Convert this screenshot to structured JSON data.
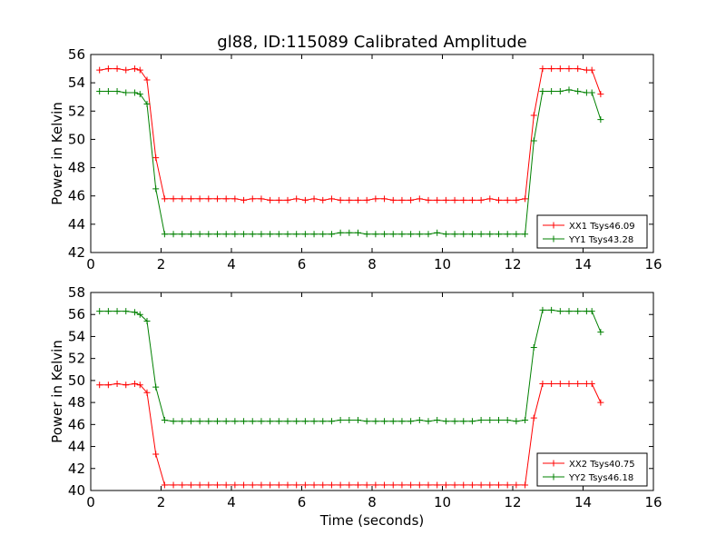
{
  "title": "gl88, ID:115089 Calibrated Amplitude",
  "colors": {
    "red": "#ff0000",
    "green": "#008000",
    "axis": "#000000",
    "background": "#ffffff"
  },
  "chart_data": [
    {
      "type": "line",
      "title": "gl88, ID:115089 Calibrated Amplitude",
      "xlabel": "",
      "ylabel": "Power in Kelvin",
      "xlim": [
        0,
        16
      ],
      "ylim": [
        42,
        56
      ],
      "xticks": [
        0,
        2,
        4,
        6,
        8,
        10,
        12,
        14,
        16
      ],
      "yticks": [
        42,
        44,
        46,
        48,
        50,
        52,
        54,
        56
      ],
      "grid": false,
      "legend": "lower-right",
      "x": [
        0.25,
        0.5,
        0.75,
        1.0,
        1.25,
        1.4,
        1.6,
        1.85,
        2.1,
        2.35,
        2.6,
        2.85,
        3.1,
        3.35,
        3.6,
        3.85,
        4.1,
        4.35,
        4.6,
        4.85,
        5.1,
        5.35,
        5.6,
        5.85,
        6.1,
        6.35,
        6.6,
        6.85,
        7.1,
        7.35,
        7.6,
        7.85,
        8.1,
        8.35,
        8.6,
        8.85,
        9.1,
        9.35,
        9.6,
        9.85,
        10.1,
        10.35,
        10.6,
        10.85,
        11.1,
        11.35,
        11.6,
        11.85,
        12.1,
        12.35,
        12.6,
        12.85,
        13.1,
        13.35,
        13.6,
        13.85,
        14.1,
        14.25,
        14.5
      ],
      "series": [
        {
          "name": "XX1 Tsys46.09",
          "color": "#ff0000",
          "values": [
            54.9,
            55.0,
            55.0,
            54.9,
            55.0,
            54.9,
            54.2,
            48.7,
            45.8,
            45.8,
            45.8,
            45.8,
            45.8,
            45.8,
            45.8,
            45.8,
            45.8,
            45.7,
            45.8,
            45.8,
            45.7,
            45.7,
            45.7,
            45.8,
            45.7,
            45.8,
            45.7,
            45.8,
            45.7,
            45.7,
            45.7,
            45.7,
            45.8,
            45.8,
            45.7,
            45.7,
            45.7,
            45.8,
            45.7,
            45.7,
            45.7,
            45.7,
            45.7,
            45.7,
            45.7,
            45.8,
            45.7,
            45.7,
            45.7,
            45.8,
            51.7,
            55.0,
            55.0,
            55.0,
            55.0,
            55.0,
            54.9,
            54.9,
            53.2
          ]
        },
        {
          "name": "YY1 Tsys43.28",
          "color": "#008000",
          "values": [
            53.4,
            53.4,
            53.4,
            53.3,
            53.3,
            53.2,
            52.5,
            46.5,
            43.3,
            43.3,
            43.3,
            43.3,
            43.3,
            43.3,
            43.3,
            43.3,
            43.3,
            43.3,
            43.3,
            43.3,
            43.3,
            43.3,
            43.3,
            43.3,
            43.3,
            43.3,
            43.3,
            43.3,
            43.4,
            43.4,
            43.4,
            43.3,
            43.3,
            43.3,
            43.3,
            43.3,
            43.3,
            43.3,
            43.3,
            43.4,
            43.3,
            43.3,
            43.3,
            43.3,
            43.3,
            43.3,
            43.3,
            43.3,
            43.3,
            43.3,
            49.9,
            53.4,
            53.4,
            53.4,
            53.5,
            53.4,
            53.3,
            53.3,
            51.4
          ]
        }
      ]
    },
    {
      "type": "line",
      "title": "",
      "xlabel": "Time (seconds)",
      "ylabel": "Power in Kelvin",
      "xlim": [
        0,
        16
      ],
      "ylim": [
        40,
        58
      ],
      "xticks": [
        0,
        2,
        4,
        6,
        8,
        10,
        12,
        14,
        16
      ],
      "yticks": [
        40,
        42,
        44,
        46,
        48,
        50,
        52,
        54,
        56,
        58
      ],
      "grid": false,
      "legend": "lower-right",
      "x": [
        0.25,
        0.5,
        0.75,
        1.0,
        1.25,
        1.4,
        1.6,
        1.85,
        2.1,
        2.35,
        2.6,
        2.85,
        3.1,
        3.35,
        3.6,
        3.85,
        4.1,
        4.35,
        4.6,
        4.85,
        5.1,
        5.35,
        5.6,
        5.85,
        6.1,
        6.35,
        6.6,
        6.85,
        7.1,
        7.35,
        7.6,
        7.85,
        8.1,
        8.35,
        8.6,
        8.85,
        9.1,
        9.35,
        9.6,
        9.85,
        10.1,
        10.35,
        10.6,
        10.85,
        11.1,
        11.35,
        11.6,
        11.85,
        12.1,
        12.35,
        12.6,
        12.85,
        13.1,
        13.35,
        13.6,
        13.85,
        14.1,
        14.25,
        14.5
      ],
      "series": [
        {
          "name": "XX2 Tsys40.75",
          "color": "#ff0000",
          "values": [
            49.6,
            49.6,
            49.7,
            49.6,
            49.7,
            49.6,
            48.9,
            43.3,
            40.5,
            40.5,
            40.5,
            40.5,
            40.5,
            40.5,
            40.5,
            40.5,
            40.5,
            40.5,
            40.5,
            40.5,
            40.5,
            40.5,
            40.5,
            40.5,
            40.5,
            40.5,
            40.5,
            40.5,
            40.5,
            40.5,
            40.5,
            40.5,
            40.5,
            40.5,
            40.5,
            40.5,
            40.5,
            40.5,
            40.5,
            40.5,
            40.5,
            40.5,
            40.5,
            40.5,
            40.5,
            40.5,
            40.5,
            40.5,
            40.5,
            40.5,
            46.6,
            49.7,
            49.7,
            49.7,
            49.7,
            49.7,
            49.7,
            49.7,
            48.0
          ]
        },
        {
          "name": "YY2 Tsys46.18",
          "color": "#008000",
          "values": [
            56.3,
            56.3,
            56.3,
            56.3,
            56.2,
            56.0,
            55.4,
            49.4,
            46.4,
            46.3,
            46.3,
            46.3,
            46.3,
            46.3,
            46.3,
            46.3,
            46.3,
            46.3,
            46.3,
            46.3,
            46.3,
            46.3,
            46.3,
            46.3,
            46.3,
            46.3,
            46.3,
            46.3,
            46.4,
            46.4,
            46.4,
            46.3,
            46.3,
            46.3,
            46.3,
            46.3,
            46.3,
            46.4,
            46.3,
            46.4,
            46.3,
            46.3,
            46.3,
            46.3,
            46.4,
            46.4,
            46.4,
            46.4,
            46.3,
            46.4,
            53.0,
            56.4,
            56.4,
            56.3,
            56.3,
            56.3,
            56.3,
            56.3,
            54.4
          ]
        }
      ]
    }
  ]
}
